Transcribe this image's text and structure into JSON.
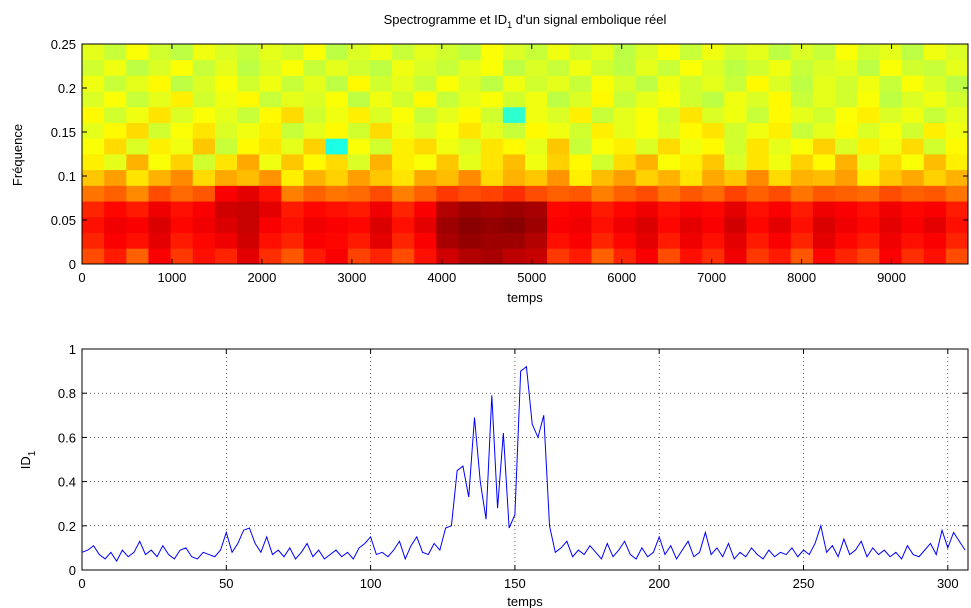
{
  "chart_data": [
    {
      "type": "heatmap",
      "title": [
        "Spectrogramme et ID",
        "1",
        " d'un signal embolique réel"
      ],
      "x_label": "temps",
      "y_label": "Fréquence",
      "xlim": [
        0,
        9850
      ],
      "xticks": [
        0,
        1000,
        2000,
        3000,
        4000,
        5000,
        6000,
        7000,
        8000,
        9000
      ],
      "ylim": [
        0,
        0.25
      ],
      "yticks": [
        0,
        0.05,
        0.1,
        0.15,
        0.2,
        0.25
      ],
      "colormap": "jet",
      "zlim": [
        0,
        100
      ],
      "z": [
        [
          80,
          85,
          78,
          88,
          82,
          86,
          84,
          90,
          83,
          79,
          85,
          88,
          81,
          84,
          80,
          86,
          92,
          95,
          96,
          94,
          93,
          82,
          85,
          78,
          84,
          88,
          80,
          86,
          83,
          89,
          82,
          85,
          79,
          87,
          84,
          81,
          88,
          83,
          86,
          80
        ],
        [
          84,
          88,
          86,
          90,
          85,
          87,
          89,
          92,
          86,
          84,
          88,
          87,
          85,
          90,
          84,
          88,
          96,
          98,
          97,
          97,
          95,
          86,
          88,
          84,
          87,
          90,
          85,
          89,
          86,
          90,
          85,
          88,
          84,
          90,
          87,
          85,
          89,
          86,
          88,
          84
        ],
        [
          86,
          89,
          88,
          91,
          87,
          89,
          91,
          93,
          88,
          86,
          89,
          88,
          87,
          91,
          86,
          90,
          97,
          99,
          98,
          99,
          97,
          88,
          89,
          86,
          89,
          91,
          87,
          90,
          88,
          92,
          87,
          90,
          86,
          91,
          89,
          87,
          90,
          88,
          90,
          86
        ],
        [
          84,
          87,
          85,
          89,
          86,
          88,
          92,
          93,
          90,
          85,
          87,
          86,
          85,
          89,
          84,
          88,
          95,
          97,
          96,
          97,
          96,
          87,
          88,
          85,
          87,
          89,
          86,
          88,
          87,
          90,
          86,
          88,
          85,
          89,
          88,
          86,
          89,
          87,
          88,
          85
        ],
        [
          76,
          78,
          74,
          80,
          77,
          79,
          88,
          90,
          86,
          75,
          78,
          76,
          77,
          80,
          75,
          78,
          82,
          80,
          81,
          83,
          80,
          78,
          79,
          75,
          78,
          80,
          76,
          79,
          77,
          81,
          78,
          80,
          76,
          79,
          78,
          77,
          80,
          78,
          79,
          76
        ],
        [
          68,
          72,
          65,
          70,
          74,
          66,
          71,
          69,
          73,
          64,
          70,
          67,
          72,
          68,
          65,
          71,
          69,
          74,
          66,
          70,
          68,
          73,
          64,
          69,
          72,
          67,
          70,
          65,
          71,
          68,
          74,
          66,
          70,
          69,
          72,
          64,
          68,
          71,
          67,
          70
        ],
        [
          64,
          60,
          70,
          62,
          67,
          58,
          65,
          71,
          61,
          68,
          63,
          66,
          59,
          70,
          64,
          62,
          68,
          60,
          65,
          69,
          61,
          67,
          63,
          58,
          66,
          70,
          62,
          64,
          68,
          59,
          65,
          61,
          67,
          63,
          70,
          60,
          66,
          62,
          69,
          64
        ],
        [
          62,
          66,
          59,
          64,
          61,
          68,
          57,
          63,
          65,
          60,
          67,
          40,
          62,
          58,
          64,
          66,
          61,
          59,
          65,
          63,
          60,
          68,
          57,
          62,
          64,
          59,
          66,
          61,
          63,
          58,
          65,
          60,
          62,
          67,
          59,
          64,
          61,
          66,
          58,
          63
        ],
        [
          60,
          63,
          66,
          58,
          62,
          65,
          59,
          61,
          64,
          57,
          60,
          63,
          58,
          66,
          61,
          59,
          62,
          65,
          60,
          57,
          63,
          61,
          58,
          64,
          60,
          62,
          59,
          63,
          65,
          58,
          61,
          64,
          57,
          60,
          63,
          59,
          62,
          58,
          64,
          61
        ],
        [
          63,
          58,
          61,
          65,
          59,
          62,
          60,
          57,
          63,
          66,
          58,
          61,
          64,
          59,
          62,
          57,
          60,
          63,
          58,
          42,
          61,
          59,
          64,
          57,
          60,
          62,
          58,
          65,
          59,
          61,
          57,
          63,
          60,
          58,
          62,
          64,
          59,
          61,
          57,
          60
        ],
        [
          59,
          62,
          57,
          60,
          64,
          58,
          61,
          63,
          57,
          60,
          59,
          62,
          56,
          61,
          58,
          63,
          57,
          60,
          62,
          58,
          61,
          56,
          59,
          63,
          57,
          60,
          62,
          58,
          56,
          61,
          59,
          63,
          57,
          60,
          58,
          62,
          56,
          59,
          61,
          58
        ],
        [
          61,
          57,
          60,
          63,
          56,
          59,
          62,
          58,
          61,
          57,
          60,
          56,
          63,
          58,
          60,
          57,
          62,
          59,
          56,
          61,
          58,
          60,
          57,
          62,
          59,
          56,
          61,
          58,
          60,
          57,
          63,
          59,
          56,
          60,
          58,
          61,
          57,
          62,
          59,
          56
        ],
        [
          58,
          61,
          56,
          59,
          62,
          57,
          60,
          56,
          59,
          62,
          57,
          60,
          58,
          56,
          61,
          59,
          57,
          60,
          62,
          56,
          59,
          57,
          61,
          58,
          56,
          60,
          57,
          62,
          59,
          56,
          58,
          61,
          57,
          59,
          60,
          56,
          62,
          58,
          57,
          60
        ],
        [
          60,
          57,
          62,
          58,
          56,
          61,
          59,
          57,
          60,
          58,
          62,
          56,
          59,
          61,
          57,
          60,
          58,
          56,
          62,
          59,
          57,
          61,
          58,
          60,
          56,
          59,
          62,
          57,
          61,
          58,
          60,
          56,
          59,
          57,
          62,
          58,
          60,
          56,
          61,
          59
        ]
      ]
    },
    {
      "type": "line",
      "x_label": "temps",
      "y_label": [
        "ID",
        "1"
      ],
      "xlim": [
        0,
        307
      ],
      "xticks": [
        0,
        50,
        100,
        150,
        200,
        250,
        300
      ],
      "ylim": [
        0,
        1
      ],
      "yticks": [
        0,
        0.2,
        0.4,
        0.6,
        0.8,
        1
      ],
      "grid": true,
      "x": [
        0,
        2,
        4,
        6,
        8,
        10,
        12,
        14,
        16,
        18,
        20,
        22,
        24,
        26,
        28,
        30,
        32,
        34,
        36,
        38,
        40,
        42,
        44,
        46,
        48,
        50,
        52,
        54,
        56,
        58,
        60,
        62,
        64,
        66,
        68,
        70,
        72,
        74,
        76,
        78,
        80,
        82,
        84,
        86,
        88,
        90,
        92,
        94,
        96,
        98,
        100,
        102,
        104,
        106,
        108,
        110,
        112,
        114,
        116,
        118,
        120,
        122,
        124,
        126,
        128,
        130,
        132,
        134,
        136,
        138,
        140,
        142,
        144,
        146,
        148,
        150,
        152,
        154,
        156,
        158,
        160,
        162,
        164,
        166,
        168,
        170,
        172,
        174,
        176,
        178,
        180,
        182,
        184,
        186,
        188,
        190,
        192,
        194,
        196,
        198,
        200,
        202,
        204,
        206,
        208,
        210,
        212,
        214,
        216,
        218,
        220,
        222,
        224,
        226,
        228,
        230,
        232,
        234,
        236,
        238,
        240,
        242,
        244,
        246,
        248,
        250,
        252,
        254,
        256,
        258,
        260,
        262,
        264,
        266,
        268,
        270,
        272,
        274,
        276,
        278,
        280,
        282,
        284,
        286,
        288,
        290,
        292,
        294,
        296,
        298,
        300,
        302,
        304,
        306
      ],
      "series": [
        {
          "color": "#0000ff",
          "values": [
            0.08,
            0.09,
            0.11,
            0.07,
            0.05,
            0.08,
            0.04,
            0.09,
            0.06,
            0.08,
            0.13,
            0.07,
            0.09,
            0.06,
            0.11,
            0.07,
            0.05,
            0.09,
            0.1,
            0.06,
            0.05,
            0.08,
            0.07,
            0.06,
            0.09,
            0.17,
            0.08,
            0.12,
            0.18,
            0.19,
            0.12,
            0.08,
            0.15,
            0.07,
            0.09,
            0.06,
            0.1,
            0.05,
            0.08,
            0.12,
            0.06,
            0.09,
            0.05,
            0.07,
            0.09,
            0.06,
            0.08,
            0.05,
            0.1,
            0.12,
            0.15,
            0.07,
            0.08,
            0.06,
            0.09,
            0.13,
            0.05,
            0.11,
            0.15,
            0.08,
            0.07,
            0.12,
            0.09,
            0.19,
            0.2,
            0.45,
            0.47,
            0.33,
            0.69,
            0.4,
            0.23,
            0.79,
            0.28,
            0.62,
            0.19,
            0.25,
            0.9,
            0.92,
            0.66,
            0.6,
            0.7,
            0.2,
            0.08,
            0.1,
            0.13,
            0.06,
            0.09,
            0.07,
            0.11,
            0.08,
            0.05,
            0.12,
            0.06,
            0.09,
            0.13,
            0.07,
            0.05,
            0.1,
            0.06,
            0.08,
            0.15,
            0.07,
            0.11,
            0.05,
            0.09,
            0.13,
            0.06,
            0.08,
            0.17,
            0.07,
            0.1,
            0.06,
            0.12,
            0.05,
            0.08,
            0.06,
            0.1,
            0.07,
            0.05,
            0.09,
            0.06,
            0.08,
            0.07,
            0.1,
            0.06,
            0.09,
            0.07,
            0.12,
            0.2,
            0.08,
            0.11,
            0.06,
            0.14,
            0.07,
            0.09,
            0.13,
            0.06,
            0.1,
            0.07,
            0.09,
            0.06,
            0.08,
            0.05,
            0.11,
            0.07,
            0.06,
            0.09,
            0.12,
            0.07,
            0.18,
            0.1,
            0.17,
            0.13,
            0.09
          ]
        }
      ]
    }
  ]
}
